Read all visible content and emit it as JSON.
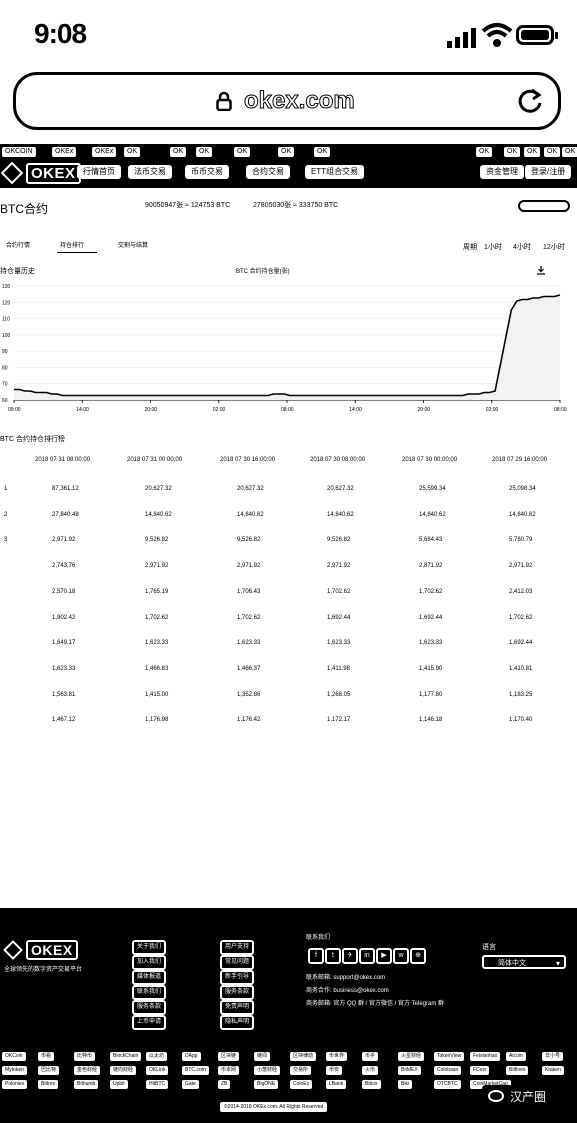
{
  "status_bar": {
    "time": "9:08"
  },
  "browser": {
    "url": "okex.com"
  },
  "site_nav": {
    "top_links": [
      "OKCOIN",
      "OKEx",
      "OKEx",
      "OK",
      "OK",
      "OK",
      "OK",
      "OK",
      "OK",
      "OK",
      "OK",
      "OK",
      "OK",
      "OK"
    ],
    "logo": "OKEX",
    "items": [
      "行情首页",
      "法币交易",
      "币币交易",
      "合约交易",
      "ETT组合交易"
    ],
    "right_items": [
      "资金管理",
      "登录/注册"
    ]
  },
  "header": {
    "title": "BTC合约",
    "stat1": "90050947张 ≈ 124753 BTC",
    "stat2": "27805030张 ≈ 333750 BTC"
  },
  "tabs": [
    "合约行情",
    "持仓排行",
    "交割与结算"
  ],
  "range_label": "周期",
  "ranges": [
    "1小时",
    "4小时",
    "12小时"
  ],
  "chart_section": {
    "title": "持仓量历史",
    "note": "BTC 合约持仓量(张)",
    "chart_data": {
      "type": "line",
      "x_ticks": [
        "09:00",
        "14:00",
        "20:00",
        "02:00",
        "08:00",
        "14:00",
        "20:00",
        "02:00",
        "08:00"
      ],
      "y_ticks": [
        "130",
        "120",
        "110",
        "100",
        "90",
        "80",
        "70",
        "60"
      ],
      "ylim": [
        58,
        134
      ],
      "series": [
        {
          "values": [
            65,
            65,
            64,
            64,
            63,
            63,
            63,
            62,
            62,
            61,
            61,
            61,
            61,
            61,
            61,
            61,
            61,
            61,
            61,
            61,
            61,
            61,
            61,
            61,
            61,
            61,
            61,
            61,
            61,
            61,
            61,
            61,
            61,
            61,
            61,
            61,
            61,
            61,
            61,
            61,
            61,
            61,
            61,
            61,
            61,
            61,
            61,
            61,
            62,
            62,
            62,
            61,
            61,
            61,
            61,
            61,
            61,
            61,
            61,
            61,
            61,
            61,
            61,
            61,
            61,
            61,
            61,
            61,
            61,
            61,
            61,
            61,
            61,
            61,
            61,
            61,
            61,
            61,
            61,
            61,
            61,
            61,
            61,
            61,
            62,
            62,
            62,
            63,
            63,
            64,
            82,
            100,
            118,
            124,
            125,
            125,
            126,
            126,
            127,
            127,
            127,
            128
          ]
        }
      ]
    }
  },
  "table": {
    "title": "BTC 合约持仓排行榜",
    "headers": [
      "2018 07 31 08:00:00",
      "2018 07 31 00:00:00",
      "2018 07 30 16:00:00",
      "2018 07 30 08:00:00",
      "2018 07 30 00:00:00",
      "2018 07 29 16:00:00"
    ],
    "rows": [
      {
        "rank": "1",
        "values": [
          "87,361.12",
          "20,627.32",
          "20,627.32",
          "20,627.32",
          "25,599.34",
          "25,098.34"
        ]
      },
      {
        "rank": "2",
        "values": [
          "27,840.48",
          "14,840.62",
          "14,840.62",
          "14,840.62",
          "14,840.62",
          "14,840.62"
        ]
      },
      {
        "rank": "3",
        "values": [
          "2,971.92",
          "9,526.82",
          "9,526.82",
          "9,526.82",
          "5,684.43",
          "5,760.79"
        ]
      },
      {
        "rank": "",
        "values": [
          "2,743.76",
          "2,971.92",
          "2,971.92",
          "2,971.92",
          "2,871.92",
          "2,971.92"
        ]
      },
      {
        "rank": "",
        "values": [
          "2,570.18",
          "1,765.19",
          "1,706.43",
          "1,702.62",
          "1,702.62",
          "2,412.03"
        ]
      },
      {
        "rank": "",
        "values": [
          "1,902.42",
          "1,702.62",
          "1,702.62",
          "1,692.44",
          "1,692.44",
          "1,702.62"
        ]
      },
      {
        "rank": "",
        "values": [
          "1,649.17",
          "1,623.33",
          "1,623.33",
          "1,623.33",
          "1,623.33",
          "1,692.44"
        ]
      },
      {
        "rank": "",
        "values": [
          "1,623.33",
          "1,466.83",
          "1,466.37",
          "1,411.98",
          "1,415.90",
          "1,410.81"
        ]
      },
      {
        "rank": "",
        "values": [
          "1,563.81",
          "1,415.00",
          "1,352.86",
          "1,268.05",
          "1,177.80",
          "1,183.25"
        ]
      },
      {
        "rank": "",
        "values": [
          "1,467.12",
          "1,176.98",
          "1,176.42",
          "1,172.17",
          "1,146.18",
          "1,170.40"
        ]
      }
    ]
  },
  "footer": {
    "logo": "OKEX",
    "tagline": "全球领先的数字资产交易平台",
    "col1": [
      "关于我们",
      "加入我们",
      "媒体报道",
      "联系我们",
      "服务条款",
      "上币申请"
    ],
    "col2": [
      "用户支持",
      "常见问题",
      "新手引导",
      "服务条款",
      "免责声明",
      "隐私声明"
    ],
    "col3_title": "联系我们",
    "social_icons": [
      "f",
      "t",
      "✈",
      "in",
      "▶",
      "w",
      "⊕"
    ],
    "contact_lines": [
      "联系邮箱: support@okex.com",
      "商务合作: business@okex.com",
      "商务邮箱: 官方 QQ 群 / 官方微信 / 官方 Telegram 群"
    ],
    "lang_label": "语言",
    "lang_value": "简体中文",
    "links": [
      "OKCoin",
      "币看",
      "比特币",
      "BlockChain",
      "以太坊",
      "DApp",
      "区块链",
      "链闻",
      "区块律动",
      "币世界",
      "币乎",
      "火星财经",
      "TokenView",
      "Feixiaohao",
      "Aicoin",
      "非小号",
      "Mytoken",
      "巴比特",
      "金色财经",
      "链向财经",
      "OKLink",
      "BTC.com",
      "币本网",
      "小葱财经",
      "交易所",
      "币安",
      "火币",
      "BitMEX",
      "Coinbase",
      "FCoin",
      "Bitfinex",
      "Kraken",
      "Poloniex",
      "Bittrex",
      "Bithumb",
      "Upbit",
      "HitBTC",
      "Gate",
      "ZB",
      "BigONE",
      "CoinEx",
      "LBank",
      "Bibox",
      "Biki",
      "OTCBTC",
      "CoinMarketCap"
    ],
    "copyright": "©2014-2018 OKEx.com. All Rights Reserved",
    "watermark": "汉产圈"
  }
}
